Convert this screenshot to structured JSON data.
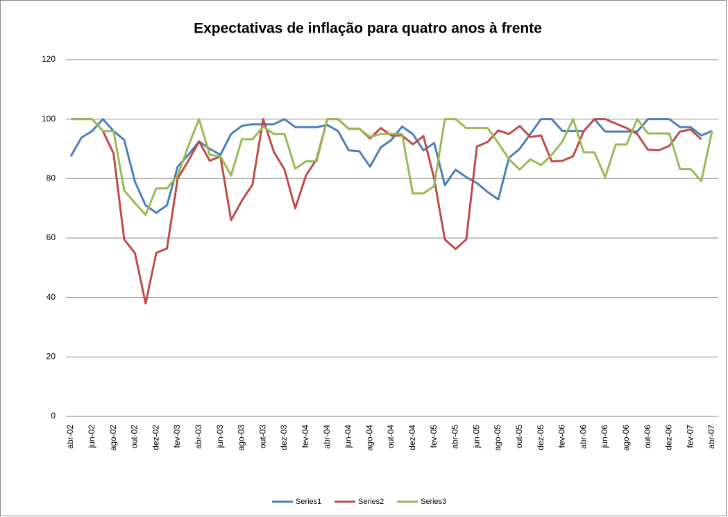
{
  "chart_data": {
    "type": "line",
    "title": "Expectativas de inflação para quatro anos à frente",
    "categories": [
      "abr-02",
      null,
      "jun-02",
      null,
      "ago-02",
      null,
      "out-02",
      null,
      "dez-02",
      null,
      "fev-03",
      null,
      "abr-03",
      null,
      "jun-03",
      null,
      "ago-03",
      null,
      "out-03",
      null,
      "dez-03",
      null,
      "fev-04",
      null,
      "abr-04",
      null,
      "jun-04",
      null,
      "ago-04",
      null,
      "out-04",
      null,
      "dez-04",
      null,
      "fev-05",
      null,
      "abr-05",
      null,
      "jun-05",
      null,
      "ago-05",
      null,
      "out-05",
      null,
      "dez-05",
      null,
      "fev-06",
      null,
      "abr-06",
      null,
      "jun-06",
      null,
      "ago-06",
      null,
      "out-06",
      null,
      "dez-06",
      null,
      "fev-07",
      null,
      "abr-07"
    ],
    "series": [
      {
        "name": "Series1",
        "color": "#4a7ebb",
        "values": [
          87.5,
          93.8,
          96,
          100,
          96,
          93,
          79,
          71,
          68.5,
          71,
          84,
          88,
          92.5,
          90,
          88,
          95,
          97.7,
          98.3,
          98.3,
          98.3,
          100,
          97.3,
          97.3,
          97.3,
          98,
          96,
          89.5,
          89.2,
          84,
          90.5,
          93,
          97.5,
          95,
          89.5,
          92,
          77.8,
          83,
          80.5,
          78.5,
          75.5,
          73,
          87,
          90,
          95,
          100,
          100,
          96,
          96,
          96,
          100,
          95.8,
          95.8,
          95.8,
          95.8,
          100,
          100,
          100,
          97.3,
          97.3,
          94.5,
          96
        ]
      },
      {
        "name": "Series2",
        "color": "#be4b48",
        "values": [
          100,
          100,
          100,
          96,
          88.5,
          59.5,
          55,
          38,
          55,
          56.5,
          80,
          86,
          92.5,
          86,
          87.5,
          66,
          72.5,
          78,
          100,
          89,
          83,
          70,
          81,
          86.5,
          100,
          100,
          96.8,
          96.8,
          93.5,
          97,
          94.5,
          94.5,
          91.5,
          94.3,
          80,
          59.5,
          56.3,
          59.5,
          90.8,
          92.3,
          96.2,
          95,
          97.7,
          94,
          94.5,
          85.8,
          86,
          87.5,
          96,
          100,
          100,
          98.5,
          97,
          95,
          89.7,
          89.5,
          91,
          95.8,
          96.5,
          93.2,
          null
        ]
      },
      {
        "name": "Series3",
        "color": "#98b954",
        "values": [
          100,
          100,
          100,
          96,
          96,
          76,
          71.8,
          67.8,
          76.7,
          76.7,
          81,
          91,
          100,
          88,
          87.5,
          81,
          93.2,
          93.2,
          97.5,
          95,
          95,
          83.3,
          85.8,
          85.8,
          100,
          100,
          96.7,
          96.7,
          94,
          95,
          95,
          95,
          75,
          75,
          77.5,
          100,
          100,
          97,
          97,
          97,
          92,
          86.5,
          83,
          86.5,
          84.5,
          88,
          92.5,
          100,
          88.8,
          88.8,
          80.5,
          91.5,
          91.5,
          100,
          95.2,
          95.2,
          95.2,
          83.2,
          83.2,
          79.2,
          96
        ]
      }
    ],
    "ylim": [
      0,
      120
    ],
    "yticks": [
      0,
      20,
      40,
      60,
      80,
      100,
      120
    ],
    "grid": true,
    "legend": "bottom"
  }
}
